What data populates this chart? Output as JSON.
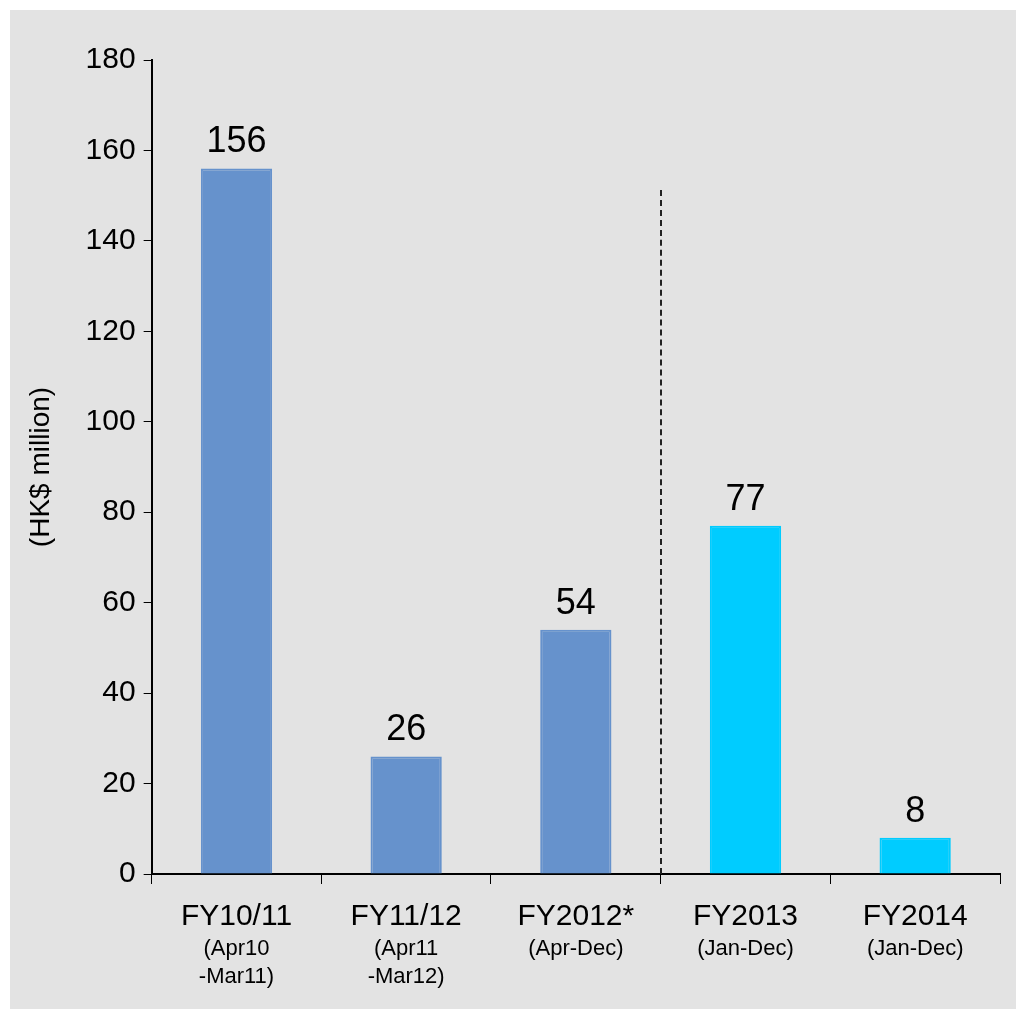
{
  "chart_data": {
    "type": "bar",
    "ylabel": "(HK$ million)",
    "categories": [
      "FY10/11\n(Apr10\n-Mar11)",
      "FY11/12\n(Apr11\n-Mar12)",
      "FY2012*\n(Apr-Dec)",
      "FY2013\n(Jan-Dec)",
      "FY2014\n(Jan-Dec)"
    ],
    "values": [
      156,
      26,
      54,
      77,
      8
    ],
    "colors": [
      "#6692cc",
      "#6692cc",
      "#6692cc",
      "#00ccff",
      "#00ccff"
    ],
    "ylim": [
      0,
      180
    ],
    "yticks": [
      0,
      20,
      40,
      60,
      80,
      100,
      120,
      140,
      160,
      180
    ],
    "data_labels": true,
    "grid": false,
    "legend": false
  }
}
